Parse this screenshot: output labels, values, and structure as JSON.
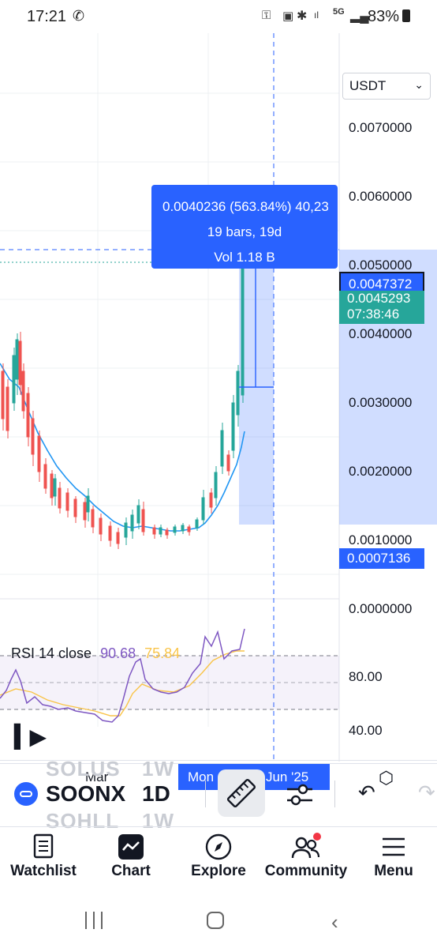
{
  "status_bar": {
    "time": "17:21",
    "battery": "83%",
    "network": "5G"
  },
  "currency": {
    "selected": "USDT"
  },
  "price_axis": {
    "labels": [
      "0.0070000",
      "0.0060000",
      "0.0050000",
      "0.0040000",
      "0.0030000",
      "0.0020000",
      "0.0010000",
      "0.0000000"
    ]
  },
  "tags": {
    "measure_top": "0.0047372",
    "last_price": "0.0045293",
    "countdown": "07:38:46",
    "measure_bottom": "0.0007136"
  },
  "measure_tooltip": {
    "line1": "0.0040236 (563.84%) 40,23",
    "line2": "19 bars, 19d",
    "line3": "Vol 1.18 B"
  },
  "rsi": {
    "title": "RSI 14 close",
    "value": "90.68",
    "ma_value": "75.84",
    "axis_labels": [
      "80.00",
      "40.00"
    ]
  },
  "date_axis": {
    "month_label": "Mar",
    "crosshair_day": "Mon",
    "crosshair_date": "Sat 07 Jun '25"
  },
  "toolbar": {
    "symbol_ghost_top": "SOLUS",
    "symbol": "SOONX",
    "symbol_ghost_bottom": "SOHLL",
    "interval_ghost_top": "1W",
    "interval": "1D",
    "interval_ghost_bottom": "1W",
    "icons": [
      "ruler-icon",
      "settings-sliders-icon",
      "undo-icon",
      "redo-icon"
    ]
  },
  "bottom_nav": [
    {
      "label": "Watchlist",
      "icon": "watchlist-icon"
    },
    {
      "label": "Chart",
      "icon": "chart-icon"
    },
    {
      "label": "Explore",
      "icon": "compass-icon"
    },
    {
      "label": "Community",
      "icon": "community-icon"
    },
    {
      "label": "Menu",
      "icon": "menu-icon"
    }
  ],
  "colors": {
    "accent": "#2962ff",
    "up": "#26a69a",
    "down": "#ef5350",
    "ma_line": "#2196f3",
    "rsi_line": "#7e57c2",
    "rsi_ma": "#f9c449"
  }
}
